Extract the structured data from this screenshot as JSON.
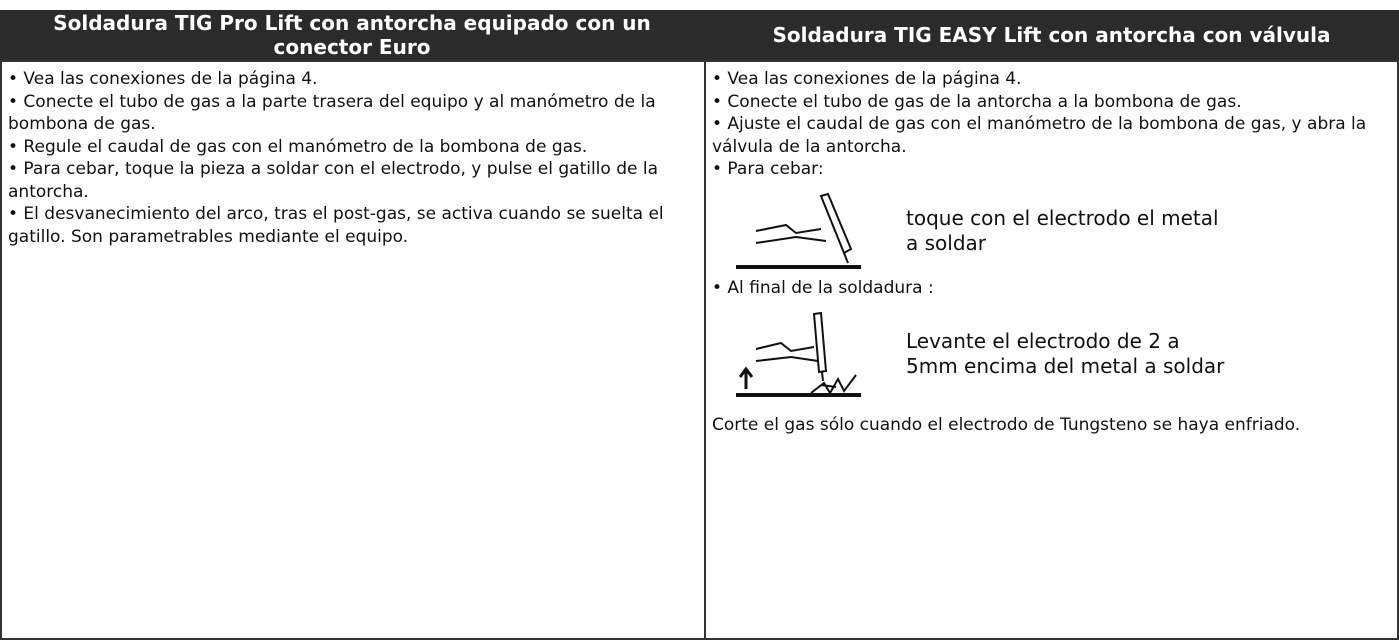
{
  "table": {
    "headers": [
      "Soldadura TIG Pro Lift con antorcha equipado con un conector Euro",
      "Soldadura TIG EASY Lift con antorcha con válvula"
    ],
    "left": {
      "items": [
        "• Vea las conexiones de la página  4.",
        "• Conecte el tubo de gas a la parte trasera del equipo y al manómetro de la bombona de gas.",
        "• Regule el caudal de gas con el manómetro de la bombona de gas.",
        "• Para cebar, toque la pieza a soldar con el electrodo, y pulse el gatillo de la antorcha.",
        "• El desvanecimiento del arco, tras el post-gas, se activa cuando se suelta el gatillo. Son parametrables mediante el equipo."
      ]
    },
    "right": {
      "items": [
        "• Vea las conexiones de la página  4.",
        "• Conecte el tubo de gas de la antorcha a la bombona de gas.",
        "• Ajuste el caudal de gas con el manómetro de la bombona de gas, y abra la válvula de la antorcha.",
        "• Para cebar:"
      ],
      "strike_caption": "toque con el electrodo el metal a soldar",
      "end_item": "• Al final de la soldadura :",
      "lift_caption": "Levante el electrodo de 2 a 5mm encima del metal a soldar",
      "note": "Corte el gas sólo cuando el electrodo de Tungsteno se haya enfriado."
    }
  }
}
